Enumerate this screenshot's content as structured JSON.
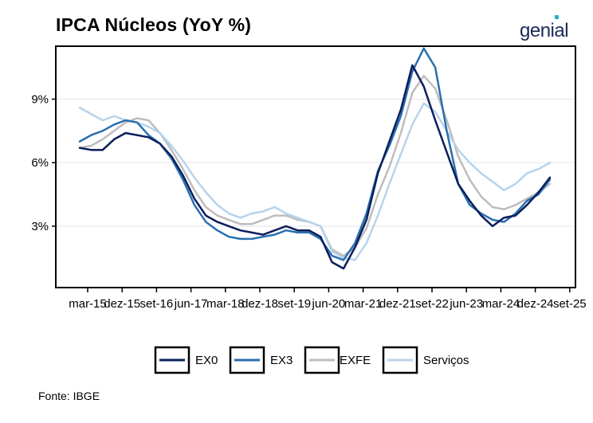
{
  "header": {
    "title": "IPCA Núcleos (YoY %)",
    "logo_text": "genial"
  },
  "footer": {
    "source": "Fonte: IBGE"
  },
  "chart_data": {
    "type": "line",
    "title": "IPCA Núcleos (YoY %)",
    "xlabel": "",
    "ylabel": "",
    "x_ticks": [
      "mar-15",
      "dez-15",
      "set-16",
      "jun-17",
      "mar-18",
      "dez-18",
      "set-19",
      "jun-20",
      "mar-21",
      "dez-21",
      "set-22",
      "jun-23",
      "mar-24",
      "dez-24",
      "set-25"
    ],
    "y_ticks": [
      3,
      6,
      9
    ],
    "y_tick_labels": [
      "3%",
      "6%",
      "9%"
    ],
    "ylim": [
      0.1,
      11.5
    ],
    "grid": "horizontal",
    "legend_position": "bottom",
    "x": [
      "jan-15",
      "abr-15",
      "jul-15",
      "out-15",
      "jan-16",
      "abr-16",
      "jul-16",
      "out-16",
      "jan-17",
      "abr-17",
      "jul-17",
      "out-17",
      "jan-18",
      "abr-18",
      "jul-18",
      "out-18",
      "jan-19",
      "abr-19",
      "jul-19",
      "out-19",
      "jan-20",
      "abr-20",
      "jul-20",
      "out-20",
      "jan-21",
      "abr-21",
      "jul-21",
      "out-21",
      "jan-22",
      "abr-22",
      "jul-22",
      "out-22",
      "jan-23",
      "abr-23",
      "jul-23",
      "out-23",
      "jan-24",
      "abr-24",
      "jul-24",
      "out-24",
      "jan-25",
      "abr-25"
    ],
    "series": [
      {
        "name": "EX0",
        "color": "#0b1f5c",
        "width": 2.5,
        "values": [
          6.7,
          6.6,
          6.6,
          7.1,
          7.4,
          7.3,
          7.2,
          6.9,
          6.3,
          5.4,
          4.3,
          3.5,
          3.2,
          3.0,
          2.8,
          2.7,
          2.6,
          2.8,
          3.0,
          2.8,
          2.8,
          2.5,
          1.3,
          1.0,
          2.0,
          3.3,
          5.5,
          7.0,
          8.5,
          10.6,
          9.6,
          8.0,
          6.5,
          5.0,
          4.2,
          3.5,
          3.0,
          3.4,
          3.5,
          4.0,
          4.6,
          5.3
        ]
      },
      {
        "name": "EX3",
        "color": "#2a6fb0",
        "width": 2.5,
        "values": [
          7.0,
          7.3,
          7.5,
          7.8,
          8.0,
          7.9,
          7.3,
          6.9,
          6.2,
          5.2,
          4.0,
          3.2,
          2.8,
          2.5,
          2.4,
          2.4,
          2.5,
          2.6,
          2.8,
          2.7,
          2.7,
          2.4,
          1.6,
          1.4,
          2.2,
          3.6,
          5.6,
          6.8,
          8.2,
          10.3,
          11.4,
          10.5,
          7.5,
          5.0,
          4.0,
          3.6,
          3.3,
          3.2,
          3.6,
          4.2,
          4.5,
          5.2
        ]
      },
      {
        "name": "EXFE",
        "color": "#bdbdbd",
        "width": 2.5,
        "values": [
          6.7,
          6.8,
          7.1,
          7.5,
          7.9,
          8.1,
          8.0,
          7.4,
          6.6,
          5.7,
          4.7,
          3.9,
          3.5,
          3.3,
          3.1,
          3.1,
          3.3,
          3.5,
          3.5,
          3.3,
          3.2,
          3.0,
          1.9,
          1.6,
          2.0,
          2.9,
          4.5,
          5.8,
          7.4,
          9.3,
          10.1,
          9.5,
          8.0,
          6.3,
          5.2,
          4.4,
          3.9,
          3.8,
          4.0,
          4.3,
          4.6,
          5.0
        ]
      },
      {
        "name": "Serviços",
        "color": "#b7d3ec",
        "width": 2.5,
        "values": [
          8.6,
          8.3,
          8.0,
          8.2,
          8.0,
          7.9,
          7.7,
          7.4,
          6.8,
          6.1,
          5.3,
          4.6,
          4.0,
          3.6,
          3.4,
          3.6,
          3.7,
          3.9,
          3.6,
          3.4,
          3.2,
          3.0,
          1.8,
          1.5,
          1.4,
          2.2,
          3.5,
          5.0,
          6.4,
          7.8,
          8.8,
          8.4,
          7.5,
          6.6,
          6.0,
          5.5,
          5.1,
          4.7,
          5.0,
          5.5,
          5.7,
          6.0
        ]
      }
    ]
  }
}
